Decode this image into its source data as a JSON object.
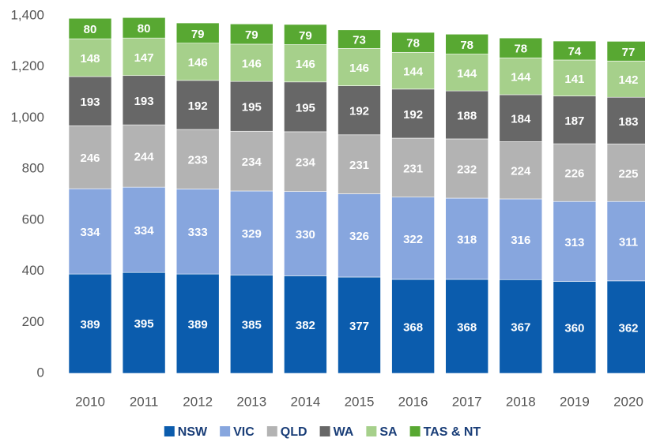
{
  "chart_data": {
    "type": "stacked_bar",
    "categories": [
      "2010",
      "2011",
      "2012",
      "2013",
      "2014",
      "2015",
      "2016",
      "2017",
      "2018",
      "2019",
      "2020"
    ],
    "series": [
      {
        "name": "NSW",
        "color": "#0b5cad",
        "values": [
          389,
          395,
          389,
          385,
          382,
          377,
          368,
          368,
          367,
          360,
          362
        ]
      },
      {
        "name": "VIC",
        "color": "#87a6de",
        "values": [
          334,
          334,
          333,
          329,
          330,
          326,
          322,
          318,
          316,
          313,
          311
        ]
      },
      {
        "name": "QLD",
        "color": "#b3b3b3",
        "values": [
          246,
          244,
          233,
          234,
          234,
          231,
          231,
          232,
          224,
          226,
          225
        ]
      },
      {
        "name": "WA",
        "color": "#676767",
        "values": [
          193,
          193,
          192,
          195,
          195,
          192,
          192,
          188,
          184,
          187,
          183
        ]
      },
      {
        "name": "SA",
        "color": "#a6d08b",
        "values": [
          148,
          147,
          146,
          146,
          146,
          146,
          144,
          144,
          144,
          141,
          142
        ]
      },
      {
        "name": "TAS & NT",
        "color": "#58a832",
        "values": [
          80,
          80,
          79,
          79,
          79,
          73,
          78,
          78,
          78,
          74,
          77
        ]
      }
    ],
    "ylim": [
      0,
      1400
    ],
    "yticks": [
      0,
      200,
      400,
      600,
      800,
      {
        "value": 1000,
        "label": "1,000"
      },
      {
        "value": 1200,
        "label": "1,200"
      },
      {
        "value": 1400,
        "label": "1,400"
      }
    ],
    "legend": "bottom"
  }
}
